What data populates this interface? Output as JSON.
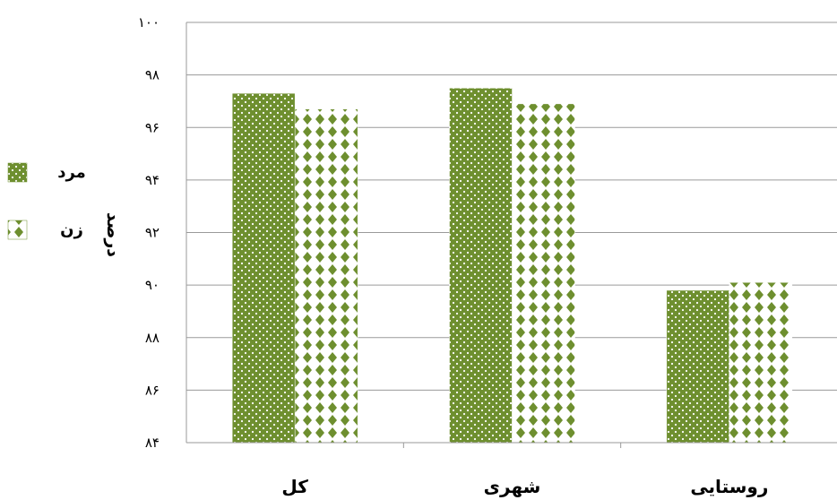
{
  "chart_data": {
    "type": "bar",
    "categories": [
      "کل",
      "شهری",
      "روستایی"
    ],
    "series": [
      {
        "name": "مرد",
        "values": [
          97.3,
          97.5,
          89.8
        ],
        "color": "#6e8f2f"
      },
      {
        "name": "زن",
        "values": [
          96.7,
          96.9,
          90.1
        ],
        "color": "#6e8f2f"
      }
    ],
    "ylabel": "درصد",
    "xlabel": "",
    "ylim": [
      84,
      100
    ],
    "y_ticks": [
      84,
      86,
      88,
      90,
      92,
      94,
      96,
      98,
      100
    ],
    "y_tick_labels": [
      "۸۴",
      "۸۶",
      "۸۸",
      "۹۰",
      "۹۲",
      "۹۴",
      "۹۶",
      "۹۸",
      "۱۰۰"
    ],
    "grid": true,
    "legend_position": "left"
  }
}
